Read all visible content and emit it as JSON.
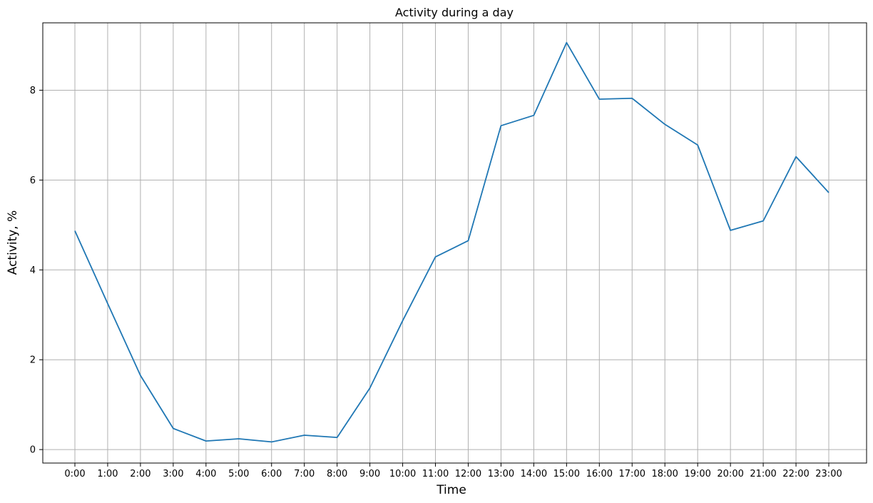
{
  "chart_data": {
    "type": "line",
    "title": "Activity during a day",
    "xlabel": "Time",
    "ylabel": "Activity, %",
    "grid": true,
    "categories": [
      "0:00",
      "1:00",
      "2:00",
      "3:00",
      "4:00",
      "5:00",
      "6:00",
      "7:00",
      "8:00",
      "9:00",
      "10:00",
      "11:00",
      "12:00",
      "13:00",
      "14:00",
      "15:00",
      "16:00",
      "17:00",
      "18:00",
      "19:00",
      "20:00",
      "21:00",
      "22:00",
      "23:00"
    ],
    "series": [
      {
        "color": "#1f77b4",
        "values": [
          4.87,
          3.25,
          1.65,
          0.47,
          0.19,
          0.24,
          0.17,
          0.32,
          0.27,
          1.37,
          2.87,
          4.29,
          4.65,
          7.21,
          7.44,
          9.06,
          7.8,
          7.82,
          7.24,
          6.78,
          4.88,
          5.09,
          6.52,
          5.72
        ]
      }
    ],
    "ylim": [
      -0.3,
      9.5
    ],
    "yticks": [
      "0",
      "2",
      "4",
      "6",
      "8"
    ],
    "ytick_values": [
      0,
      2,
      4,
      6,
      8
    ]
  }
}
